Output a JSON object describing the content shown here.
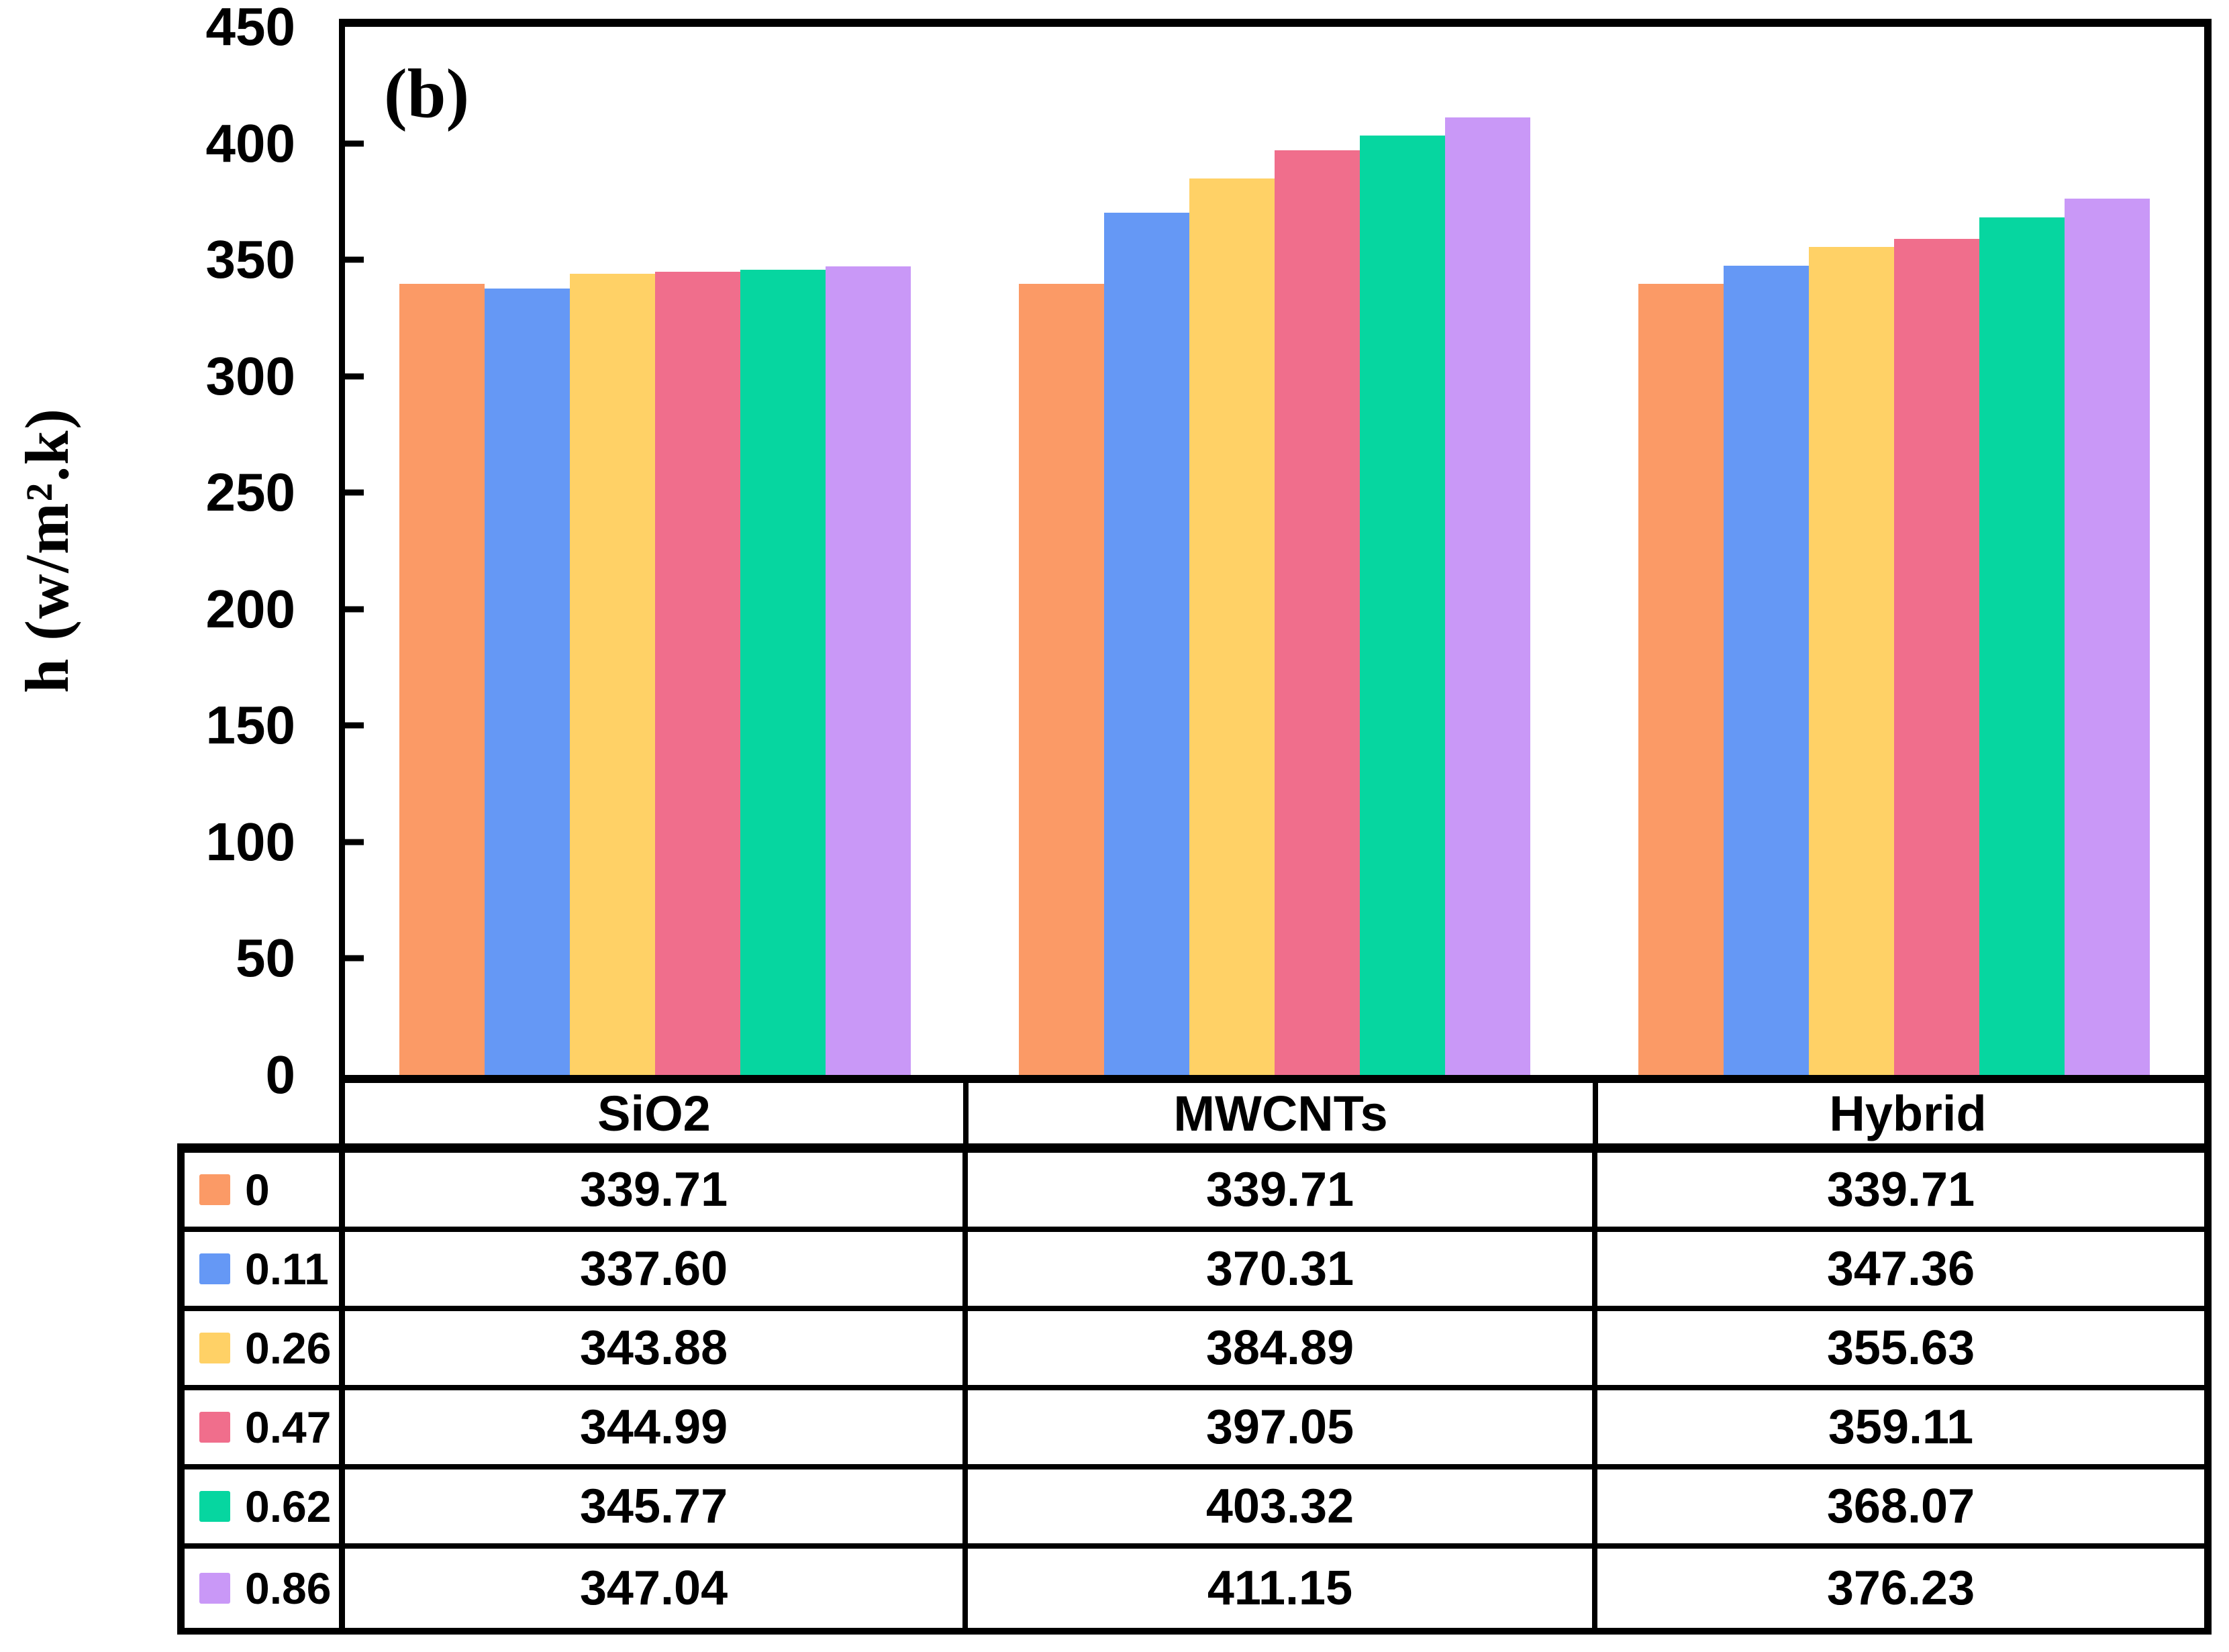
{
  "panel_label": "(b)",
  "y_axis": {
    "label": "h (w/m².k)",
    "ticks": [
      450,
      400,
      350,
      300,
      250,
      200,
      150,
      100,
      50,
      0
    ],
    "min": 0,
    "max": 450
  },
  "chart_data": {
    "type": "bar",
    "title": "",
    "xlabel": "",
    "ylabel": "h (w/m².k)",
    "ylim": [
      0,
      450
    ],
    "grid": false,
    "legend_position": "table-left-column",
    "categories": [
      "SiO2",
      "MWCNTs",
      "Hybrid"
    ],
    "series": [
      {
        "name": "0",
        "color": "#FB9A66",
        "values": [
          339.71,
          339.71,
          339.71
        ]
      },
      {
        "name": "0.11",
        "color": "#6598F5",
        "values": [
          337.6,
          370.31,
          347.36
        ]
      },
      {
        "name": "0.26",
        "color": "#FFD166",
        "values": [
          343.88,
          384.89,
          355.63
        ]
      },
      {
        "name": "0.47",
        "color": "#F06E8C",
        "values": [
          344.99,
          397.05,
          359.11
        ]
      },
      {
        "name": "0.62",
        "color": "#06D6A0",
        "values": [
          345.77,
          403.32,
          368.07
        ]
      },
      {
        "name": "0.86",
        "color": "#C998F7",
        "values": [
          347.04,
          411.15,
          376.23
        ]
      }
    ],
    "table": {
      "column_headers": [
        "SiO2",
        "MWCNTs",
        "Hybrid"
      ],
      "row_labels": [
        "0",
        "0.11",
        "0.26",
        "0.47",
        "0.62",
        "0.86"
      ],
      "value_format": "2-decimals"
    }
  },
  "colors": {
    "axis": "#000000",
    "background": "#ffffff"
  }
}
